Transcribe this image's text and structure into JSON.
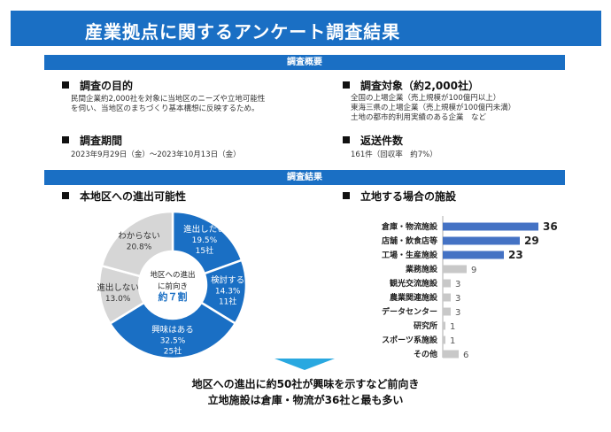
{
  "title": "産業拠点に関するアンケート調査結果",
  "overview_bar": "調査概要",
  "results_bar": "調査結果",
  "purpose": {
    "heading": "調査の目的",
    "lines": [
      "民間企業約2,000社を対象に当地区のニーズや立地可能性",
      "を伺い、当地区のまちづくり基本構想に反映するため。"
    ]
  },
  "target": {
    "heading": "調査対象（約2,000社）",
    "lines": [
      "全国の上場企業（売上規模が100億円以上）",
      "東海三県の上場企業（売上規模が100億円未満）",
      "土地の都市的利用実績のある企業　など"
    ]
  },
  "period": {
    "heading": "調査期間",
    "text": "2023年9月29日（金）～2023年10月13日（金）"
  },
  "responses": {
    "heading": "返送件数",
    "text": "161件（回収率　約7%）"
  },
  "chart_data": [
    {
      "type": "pie",
      "title": "本地区への進出可能性",
      "center_text": [
        "地区への進出",
        "に前向き",
        "約７割"
      ],
      "slices": [
        {
          "label": "進出したい",
          "percent": 19.5,
          "count": "15社",
          "pct_text": "19.5%",
          "color": "#1a6fc4",
          "text_color": "#ffffff"
        },
        {
          "label": "検討する",
          "percent": 14.3,
          "count": "11社",
          "pct_text": "14.3%",
          "color": "#1a6fc4",
          "text_color": "#ffffff"
        },
        {
          "label": "興味はある",
          "percent": 32.5,
          "count": "25社",
          "pct_text": "32.5%",
          "color": "#1a6fc4",
          "text_color": "#ffffff"
        },
        {
          "label": "進出しない",
          "percent": 13.0,
          "count": "",
          "pct_text": "13.0%",
          "color": "#d6d6d6",
          "text_color": "#333333"
        },
        {
          "label": "わからない",
          "percent": 20.8,
          "count": "",
          "pct_text": "20.8%",
          "color": "#d6d6d6",
          "text_color": "#333333"
        }
      ]
    },
    {
      "type": "bar",
      "orientation": "horizontal",
      "title": "立地する場合の施設",
      "categories": [
        "倉庫・物流施設",
        "店舗・飲食店等",
        "工場・生産施設",
        "業務施設",
        "観光交流施設",
        "農業関連施設",
        "データセンター",
        "研究所",
        "スポーツ系施設",
        "その他"
      ],
      "values": [
        36,
        29,
        23,
        9,
        3,
        3,
        3,
        1,
        1,
        6
      ],
      "highlight_count": 3,
      "colors": {
        "highlight": "#4472c4",
        "other": "#c8c8c8"
      }
    }
  ],
  "conclusion": [
    "地区への進出に約50社が興味を示すなど前向き",
    "立地施設は倉庫・物流が36社と最も多い"
  ]
}
